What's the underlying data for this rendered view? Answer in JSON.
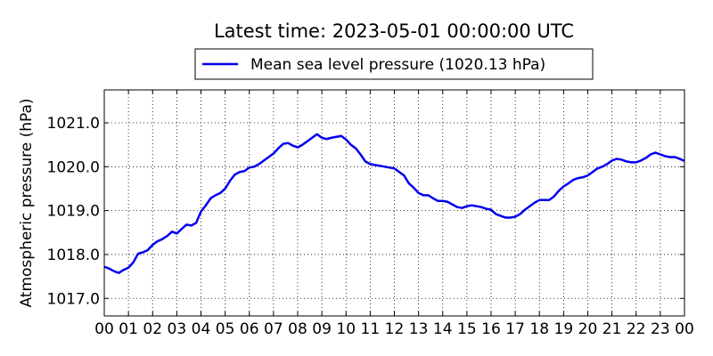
{
  "chart_data": {
    "type": "line",
    "title": "Latest time: 2023-05-01 00:00:00 UTC",
    "xlabel": "",
    "ylabel": "Atmospheric pressure (hPa)",
    "xlim": [
      0,
      24
    ],
    "ylim": [
      1016.6,
      1021.75
    ],
    "grid": true,
    "legend_position": "top-center, above plot",
    "x_tick_labels": [
      "00",
      "01",
      "02",
      "03",
      "04",
      "05",
      "06",
      "07",
      "08",
      "09",
      "10",
      "11",
      "12",
      "13",
      "14",
      "15",
      "16",
      "17",
      "18",
      "19",
      "20",
      "21",
      "22",
      "23",
      "00"
    ],
    "y_ticks": [
      1017.0,
      1018.0,
      1019.0,
      1020.0,
      1021.0
    ],
    "y_tick_labels": [
      "1017.0",
      "1018.0",
      "1019.0",
      "1020.0",
      "1021.0"
    ],
    "series": [
      {
        "name": "Mean sea level pressure (1020.13 hPa)",
        "color": "#0000ee",
        "x": [
          0.0,
          0.2,
          0.4,
          0.6,
          0.8,
          1.0,
          1.2,
          1.4,
          1.6,
          1.8,
          2.0,
          2.2,
          2.4,
          2.6,
          2.8,
          3.0,
          3.2,
          3.4,
          3.6,
          3.8,
          4.0,
          4.2,
          4.4,
          4.6,
          4.8,
          5.0,
          5.2,
          5.4,
          5.6,
          5.8,
          6.0,
          6.2,
          6.4,
          6.6,
          6.8,
          7.0,
          7.2,
          7.4,
          7.6,
          7.8,
          8.0,
          8.2,
          8.4,
          8.6,
          8.8,
          9.0,
          9.2,
          9.4,
          9.6,
          9.8,
          10.0,
          10.2,
          10.4,
          10.6,
          10.8,
          11.0,
          11.2,
          11.4,
          11.6,
          11.8,
          12.0,
          12.2,
          12.4,
          12.6,
          12.8,
          13.0,
          13.2,
          13.4,
          13.6,
          13.8,
          14.0,
          14.2,
          14.4,
          14.6,
          14.8,
          15.0,
          15.2,
          15.4,
          15.6,
          15.8,
          16.0,
          16.2,
          16.4,
          16.6,
          16.8,
          17.0,
          17.2,
          17.4,
          17.6,
          17.8,
          18.0,
          18.2,
          18.4,
          18.6,
          18.8,
          19.0,
          19.2,
          19.4,
          19.6,
          19.8,
          20.0,
          20.2,
          20.4,
          20.6,
          20.8,
          21.0,
          21.2,
          21.4,
          21.6,
          21.8,
          22.0,
          22.2,
          22.4,
          22.6,
          22.8,
          23.0,
          23.2,
          23.4,
          23.6,
          23.8,
          24.0
        ],
        "y": [
          1017.72,
          1017.68,
          1017.62,
          1017.58,
          1017.65,
          1017.7,
          1017.82,
          1018.02,
          1018.05,
          1018.1,
          1018.22,
          1018.3,
          1018.35,
          1018.42,
          1018.52,
          1018.48,
          1018.58,
          1018.68,
          1018.66,
          1018.72,
          1018.98,
          1019.12,
          1019.28,
          1019.35,
          1019.4,
          1019.5,
          1019.68,
          1019.82,
          1019.88,
          1019.9,
          1019.98,
          1020.0,
          1020.06,
          1020.14,
          1020.22,
          1020.3,
          1020.42,
          1020.52,
          1020.54,
          1020.48,
          1020.44,
          1020.5,
          1020.58,
          1020.66,
          1020.74,
          1020.66,
          1020.63,
          1020.66,
          1020.68,
          1020.7,
          1020.62,
          1020.5,
          1020.42,
          1020.28,
          1020.12,
          1020.06,
          1020.04,
          1020.02,
          1020.0,
          1019.98,
          1019.96,
          1019.88,
          1019.8,
          1019.62,
          1019.52,
          1019.4,
          1019.35,
          1019.35,
          1019.28,
          1019.22,
          1019.22,
          1019.2,
          1019.14,
          1019.08,
          1019.06,
          1019.1,
          1019.12,
          1019.1,
          1019.08,
          1019.04,
          1019.02,
          1018.92,
          1018.88,
          1018.84,
          1018.84,
          1018.86,
          1018.92,
          1019.02,
          1019.1,
          1019.18,
          1019.24,
          1019.24,
          1019.24,
          1019.32,
          1019.45,
          1019.55,
          1019.62,
          1019.7,
          1019.74,
          1019.76,
          1019.8,
          1019.88,
          1019.96,
          1020.0,
          1020.06,
          1020.14,
          1020.18,
          1020.16,
          1020.12,
          1020.1,
          1020.1,
          1020.14,
          1020.2,
          1020.28,
          1020.32,
          1020.28,
          1020.24,
          1020.22,
          1020.22,
          1020.18,
          1020.13
        ]
      }
    ]
  }
}
